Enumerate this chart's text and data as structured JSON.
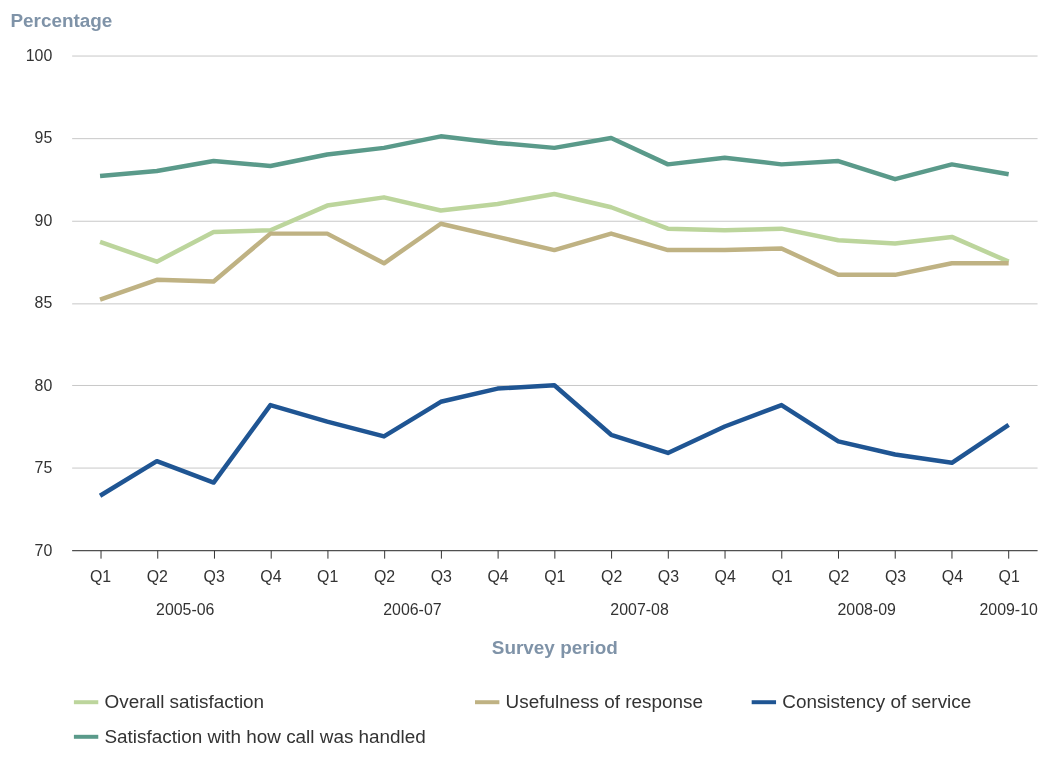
{
  "chart_data": {
    "type": "line",
    "ylabel": "Percentage",
    "xlabel": "Survey period",
    "categories": [
      "Q1",
      "Q2",
      "Q3",
      "Q4",
      "Q1",
      "Q2",
      "Q3",
      "Q4",
      "Q1",
      "Q2",
      "Q3",
      "Q4",
      "Q1",
      "Q2",
      "Q3",
      "Q4",
      "Q1"
    ],
    "annotations": [
      "2005-06",
      "2006-07",
      "2007-08",
      "2008-09",
      "2009-10"
    ],
    "series": [
      {
        "name": "Overall satisfaction",
        "color": "#bcd59c",
        "values": [
          88.7,
          87.5,
          89.3,
          89.4,
          90.9,
          91.4,
          90.6,
          91.0,
          91.6,
          90.8,
          89.5,
          89.4,
          89.5,
          88.8,
          88.6,
          89.0,
          87.5
        ]
      },
      {
        "name": "Usefulness of response",
        "color": "#bfb283",
        "values": [
          85.2,
          86.4,
          86.3,
          89.2,
          89.2,
          87.4,
          89.8,
          89.0,
          88.2,
          89.2,
          88.2,
          88.2,
          88.3,
          86.7,
          86.7,
          87.4,
          87.4
        ]
      },
      {
        "name": "Consistency of service",
        "color": "#1f5593",
        "values": [
          73.3,
          75.4,
          74.1,
          78.8,
          77.8,
          76.9,
          79.0,
          79.8,
          80.0,
          77.0,
          75.9,
          77.5,
          78.8,
          76.6,
          75.8,
          75.3,
          77.6
        ]
      },
      {
        "name": "Satisfaction with how call was handled",
        "color": "#5a9a8a",
        "values": [
          92.7,
          93.0,
          93.6,
          93.3,
          94.0,
          94.4,
          95.1,
          94.7,
          94.4,
          95.0,
          93.4,
          93.8,
          93.4,
          93.6,
          92.5,
          93.4,
          92.8
        ]
      }
    ],
    "ylim": [
      70,
      100
    ],
    "yticks": [
      70,
      75,
      80,
      85,
      90,
      95,
      100
    ],
    "grid": "y",
    "legend": "bottom",
    "line_style": "solid",
    "marker": "none"
  }
}
